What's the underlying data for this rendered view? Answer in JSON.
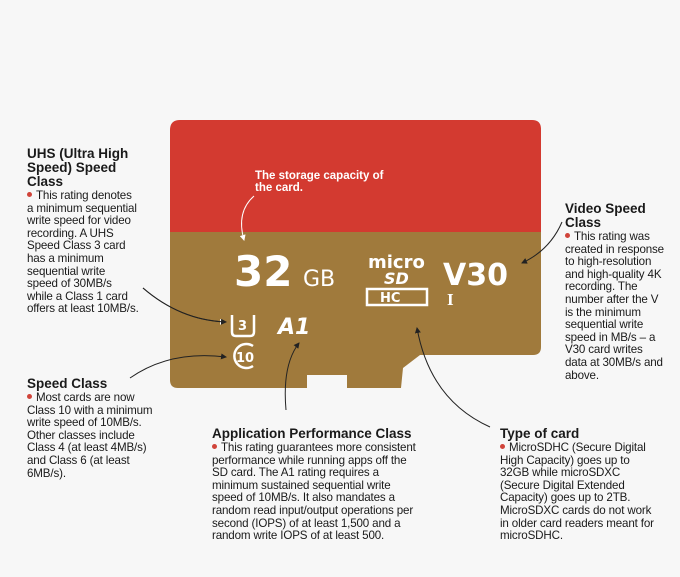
{
  "colors": {
    "card_top": "#d33a30",
    "card_bottom": "#a07a3c",
    "bullet": "#d0443a"
  },
  "card": {
    "caption": "The storage capacity of the card.",
    "capacity_number": "32",
    "capacity_unit": "GB",
    "brand_micro": "micro",
    "brand_sd": "SD",
    "brand_hc": "HC",
    "video_class": "V30",
    "uhs_bus": "I",
    "uhs_class": "3",
    "app_class": "A1",
    "speed_class": "10"
  },
  "annotations": {
    "uhs": {
      "title": "UHS (Ultra High Speed) Speed Class",
      "body": "This rating denotes a minimum sequential write speed for video recording. A UHS Speed Class 3 card has a minimum sequential write speed of 30MB/s while a Class 1 card offers at least 10MB/s."
    },
    "speed": {
      "title": "Speed Class",
      "body": "Most cards are now Class 10 with a minimum write speed of 10MB/s. Other classes include Class 4 (at least 4MB/s) and Class 6 (at least 6MB/s)."
    },
    "app": {
      "title": "Application Performance Class",
      "body": "This rating guarantees more consistent performance while running apps off the SD card. The A1 rating requires a minimum sustained sequential write speed of 10MB/s. It also mandates a random read input/output operations per second (IOPS) of at least 1,500 and a random write IOPS of at least 500."
    },
    "type": {
      "title": "Type of card",
      "body": "MicroSDHC (Secure Digital High Capacity) goes up to 32GB while microSDXC (Secure Digital Extended Capacity) goes up to 2TB. MicroSDXC cards do not work in older card readers meant for microSDHC."
    },
    "video": {
      "title": "Video Speed Class",
      "body": "This rating was created in response to high-resolution and high-quality 4K recording. The number after the V is the minimum sequential write speed in MB/s – a V30 card writes data at 30MB/s and above."
    }
  }
}
